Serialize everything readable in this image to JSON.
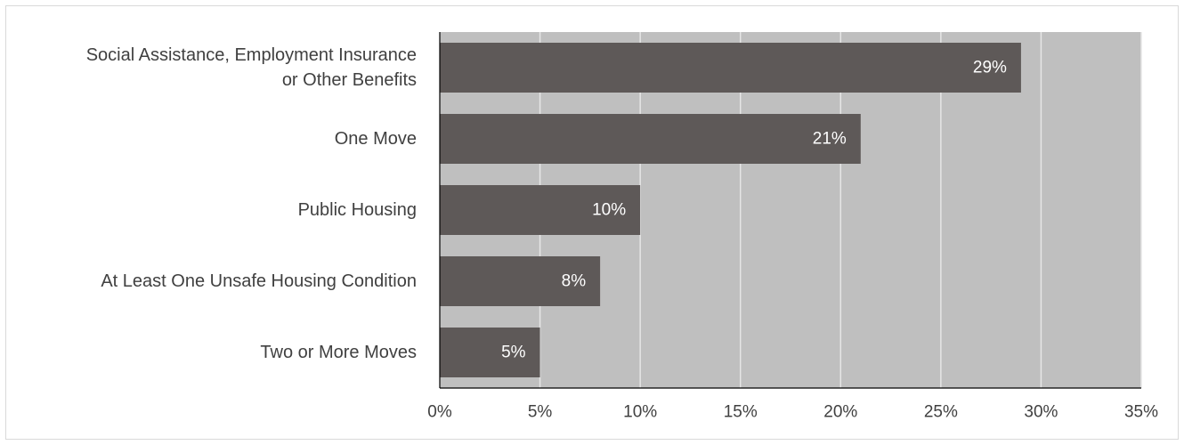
{
  "chart_data": {
    "type": "bar",
    "orientation": "horizontal",
    "categories": [
      "Social Assistance, Employment Insurance or Other Benefits",
      "One Move",
      "Public Housing",
      "At Least One Unsafe Housing Condition",
      "Two or More Moves"
    ],
    "category_lines": [
      [
        "Social Assistance, Employment Insurance",
        "or Other Benefits"
      ],
      [
        "One Move"
      ],
      [
        "Public Housing"
      ],
      [
        "At Least One Unsafe Housing Condition"
      ],
      [
        "Two or More Moves"
      ]
    ],
    "values": [
      29,
      21,
      10,
      8,
      5
    ],
    "data_labels": [
      "29%",
      "21%",
      "10%",
      "8%",
      "5%"
    ],
    "xlim": [
      0,
      35
    ],
    "xticks": [
      0,
      5,
      10,
      15,
      20,
      25,
      30,
      35
    ],
    "xtick_labels": [
      "0%",
      "5%",
      "10%",
      "15%",
      "20%",
      "25%",
      "30%",
      "35%"
    ],
    "title": "",
    "xlabel": "",
    "ylabel": "",
    "grid": "vertical",
    "legend": "none"
  },
  "colors": {
    "bar": "#5e5958",
    "plot_background": "#bfbfbf",
    "gridline": "#e6e6e6",
    "axis_line": "#000000",
    "text": "#404040",
    "data_label": "#ffffff"
  }
}
